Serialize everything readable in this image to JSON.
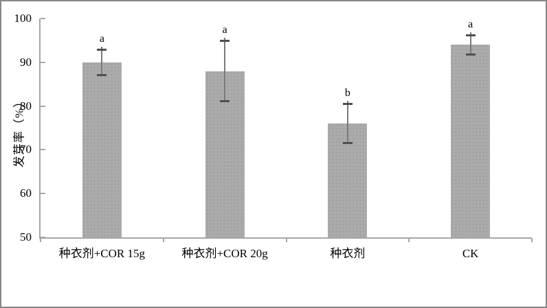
{
  "chart_data": {
    "type": "bar",
    "title": "",
    "categories": [
      "种衣剂+COR 15g",
      "种衣剂+COR 20g",
      "种衣剂",
      "CK"
    ],
    "values": [
      90,
      88,
      76,
      94
    ],
    "error_bars": [
      3,
      7,
      4.5,
      2.3
    ],
    "significance_letters": [
      "a",
      "a",
      "b",
      "a"
    ],
    "xlabel": "",
    "ylabel": "发芽率（%）",
    "ylim": [
      50,
      100
    ],
    "yticks": [
      50,
      60,
      70,
      80,
      90,
      100
    ],
    "grid": false,
    "legend_position": "none",
    "bar_color": "#ababab",
    "bar_dot_color": "#959595",
    "axis_color": "#a6a6a6",
    "error_bar_line_color": "#7a7a7a",
    "error_bar_cap_color": "#4f4f4f",
    "text_color": "#000000"
  }
}
